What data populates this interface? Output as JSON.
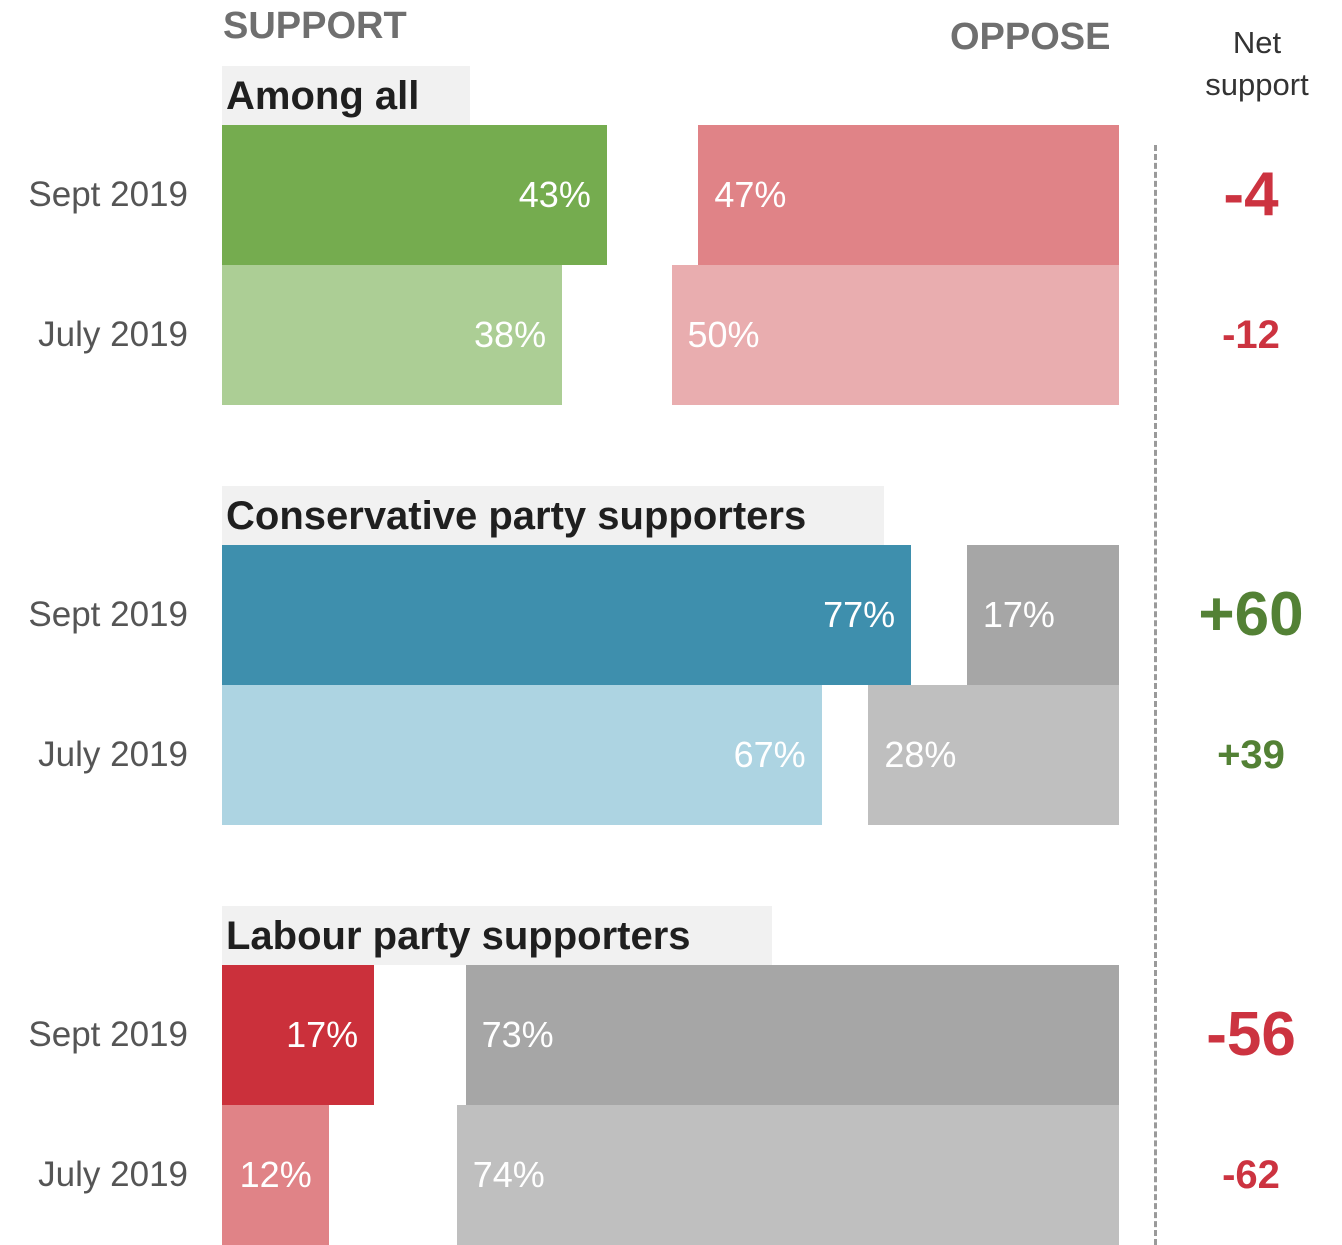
{
  "headers": {
    "support": "SUPPORT",
    "oppose": "OPPOSE",
    "net_line1": "Net",
    "net_line2": "support"
  },
  "colors": {
    "net_positive": "#538135",
    "net_negative": "#cc3340"
  },
  "chart_data": {
    "type": "bar",
    "xlim": [
      0,
      100
    ],
    "series": [
      {
        "group": "Among all",
        "support_color_current": "#75ac4f",
        "support_color_prior": "#acce95",
        "oppose_color_current": "#e08387",
        "oppose_color_prior": "#e9adaf",
        "rows": [
          {
            "period": "Sept 2019",
            "support": 43,
            "oppose": 47,
            "support_label": "43%",
            "oppose_label": "47%",
            "net": -4,
            "net_label": "-4"
          },
          {
            "period": "July 2019",
            "support": 38,
            "oppose": 50,
            "support_label": "38%",
            "oppose_label": "50%",
            "net": -12,
            "net_label": "-12"
          }
        ]
      },
      {
        "group": "Conservative party supporters",
        "support_color_current": "#3e8fad",
        "support_color_prior": "#add4e2",
        "oppose_color_current": "#a6a6a6",
        "oppose_color_prior": "#bfbfbf",
        "rows": [
          {
            "period": "Sept 2019",
            "support": 77,
            "oppose": 17,
            "support_label": "77%",
            "oppose_label": "17%",
            "net": 60,
            "net_label": "+60"
          },
          {
            "period": "July 2019",
            "support": 67,
            "oppose": 28,
            "support_label": "67%",
            "oppose_label": "28%",
            "net": 39,
            "net_label": "+39"
          }
        ]
      },
      {
        "group": "Labour party supporters",
        "support_color_current": "#cb303b",
        "support_color_prior": "#e08387",
        "oppose_color_current": "#a6a6a6",
        "oppose_color_prior": "#bfbfbf",
        "rows": [
          {
            "period": "Sept 2019",
            "support": 17,
            "oppose": 73,
            "support_label": "17%",
            "oppose_label": "73%",
            "net": -56,
            "net_label": "-56"
          },
          {
            "period": "July 2019",
            "support": 12,
            "oppose": 74,
            "support_label": "12%",
            "oppose_label": "74%",
            "net": -62,
            "net_label": "-62"
          }
        ]
      }
    ]
  }
}
